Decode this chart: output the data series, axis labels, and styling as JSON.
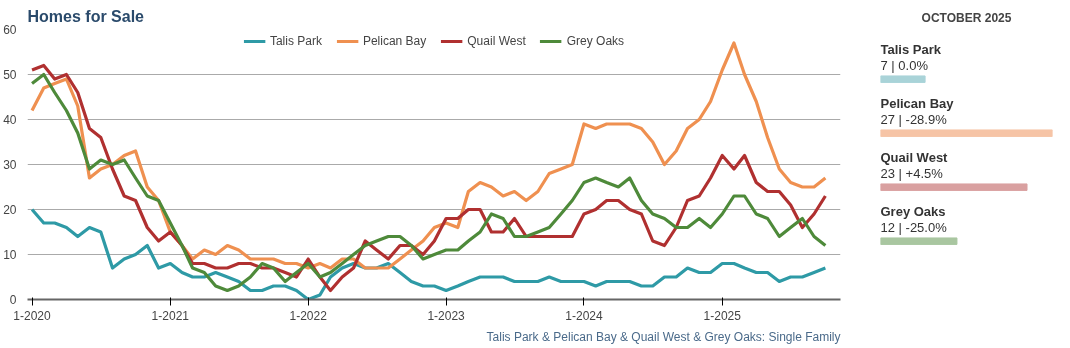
{
  "chart_data": [
    {
      "type": "line",
      "title": "Homes for Sale",
      "x": [
        "2020-01",
        "2020-02",
        "2020-03",
        "2020-04",
        "2020-05",
        "2020-06",
        "2020-07",
        "2020-08",
        "2020-09",
        "2020-10",
        "2020-11",
        "2020-12",
        "2021-01",
        "2021-02",
        "2021-03",
        "2021-04",
        "2021-05",
        "2021-06",
        "2021-07",
        "2021-08",
        "2021-09",
        "2021-10",
        "2021-11",
        "2021-12",
        "2022-01",
        "2022-02",
        "2022-03",
        "2022-04",
        "2022-05",
        "2022-06",
        "2022-07",
        "2022-08",
        "2022-09",
        "2022-10",
        "2022-11",
        "2022-12",
        "2023-01",
        "2023-02",
        "2023-03",
        "2023-04",
        "2023-05",
        "2023-06",
        "2023-07",
        "2023-08",
        "2023-09",
        "2023-10",
        "2023-11",
        "2023-12",
        "2024-01",
        "2024-02",
        "2024-03",
        "2024-04",
        "2024-05",
        "2024-06",
        "2024-07",
        "2024-08",
        "2024-09",
        "2024-10",
        "2024-11",
        "2024-12",
        "2025-01",
        "2025-02",
        "2025-03",
        "2025-04",
        "2025-05",
        "2025-06",
        "2025-07",
        "2025-08",
        "2025-09",
        "2025-10"
      ],
      "series": [
        {
          "name": "Talis Park",
          "color": "#2e9aa6",
          "values": [
            20,
            17,
            17,
            16,
            14,
            16,
            15,
            7,
            9,
            10,
            12,
            7,
            8,
            6,
            5,
            5,
            6,
            5,
            4,
            2,
            2,
            3,
            3,
            2,
            0,
            1,
            5,
            7,
            8,
            7,
            7,
            8,
            6,
            4,
            3,
            3,
            2,
            3,
            4,
            5,
            5,
            5,
            4,
            4,
            4,
            5,
            4,
            4,
            4,
            3,
            4,
            4,
            4,
            3,
            3,
            5,
            5,
            7,
            6,
            6,
            8,
            8,
            7,
            6,
            6,
            4,
            5,
            5,
            6,
            7
          ]
        },
        {
          "name": "Pelican Bay",
          "color": "#ef9050",
          "values": [
            42,
            47,
            48,
            49,
            43,
            27,
            29,
            30,
            32,
            33,
            25,
            22,
            15,
            12,
            9,
            11,
            10,
            12,
            11,
            9,
            9,
            9,
            8,
            8,
            7,
            8,
            7,
            9,
            9,
            7,
            7,
            7,
            9,
            11,
            13,
            16,
            17,
            16,
            24,
            26,
            25,
            23,
            24,
            22,
            24,
            28,
            29,
            30,
            39,
            38,
            39,
            39,
            39,
            38,
            35,
            30,
            33,
            38,
            40,
            44,
            51,
            57,
            50,
            44,
            36,
            29,
            26,
            25,
            25,
            27
          ]
        },
        {
          "name": "Quail West",
          "color": "#b03030",
          "values": [
            51,
            52,
            49,
            50,
            46,
            38,
            36,
            29,
            23,
            22,
            16,
            13,
            15,
            12,
            8,
            8,
            7,
            7,
            8,
            8,
            7,
            7,
            6,
            5,
            9,
            5,
            2,
            5,
            7,
            13,
            11,
            9,
            12,
            12,
            10,
            13,
            18,
            18,
            20,
            20,
            15,
            15,
            18,
            14,
            14,
            14,
            14,
            14,
            19,
            20,
            22,
            22,
            20,
            19,
            13,
            12,
            16,
            22,
            23,
            27,
            32,
            29,
            32,
            26,
            24,
            24,
            21,
            16,
            19,
            23
          ]
        },
        {
          "name": "Grey Oaks",
          "color": "#4e8a3a",
          "values": [
            48,
            50,
            46,
            42,
            37,
            29,
            31,
            30,
            31,
            27,
            23,
            22,
            17,
            12,
            7,
            6,
            3,
            2,
            3,
            5,
            8,
            7,
            4,
            6,
            8,
            5,
            6,
            8,
            10,
            12,
            13,
            14,
            14,
            12,
            9,
            10,
            11,
            11,
            13,
            15,
            19,
            18,
            14,
            14,
            15,
            16,
            19,
            22,
            26,
            27,
            26,
            25,
            27,
            22,
            19,
            18,
            16,
            16,
            18,
            16,
            19,
            23,
            23,
            19,
            18,
            14,
            16,
            18,
            14,
            12
          ]
        }
      ],
      "ylim": [
        0,
        60
      ],
      "yticks": [
        0,
        10,
        20,
        30,
        40,
        50,
        60
      ],
      "xlim": [
        "2019-12-20",
        "2025-11-10"
      ],
      "xticks": [
        {
          "value": "2020-01",
          "label": "1-2020"
        },
        {
          "value": "2021-01",
          "label": "1-2021"
        },
        {
          "value": "2022-01",
          "label": "1-2022"
        },
        {
          "value": "2023-01",
          "label": "1-2023"
        },
        {
          "value": "2024-01",
          "label": "1-2024"
        },
        {
          "value": "2025-01",
          "label": "1-2025"
        }
      ],
      "grid": "y",
      "legend": "top",
      "marker": "none",
      "line_style": "solid",
      "annotations": [
        "Talis Park & Pelican Bay & Quail West & Grey Oaks: Single Family"
      ]
    },
    {
      "type": "bar",
      "orientation": "horizontal",
      "title": "OCTOBER 2025",
      "categories": [
        "Talis Park",
        "Pelican Bay",
        "Quail West",
        "Grey Oaks"
      ],
      "values": [
        7,
        27,
        23,
        12
      ],
      "colors": [
        "#a9d3d8",
        "#f6c4a6",
        "#d9a0a0",
        "#a9c6a0"
      ],
      "value_labels": [
        "7 | 0.0%",
        "27 | -28.9%",
        "23 | +4.5%",
        "12 | -25.0%"
      ]
    }
  ]
}
